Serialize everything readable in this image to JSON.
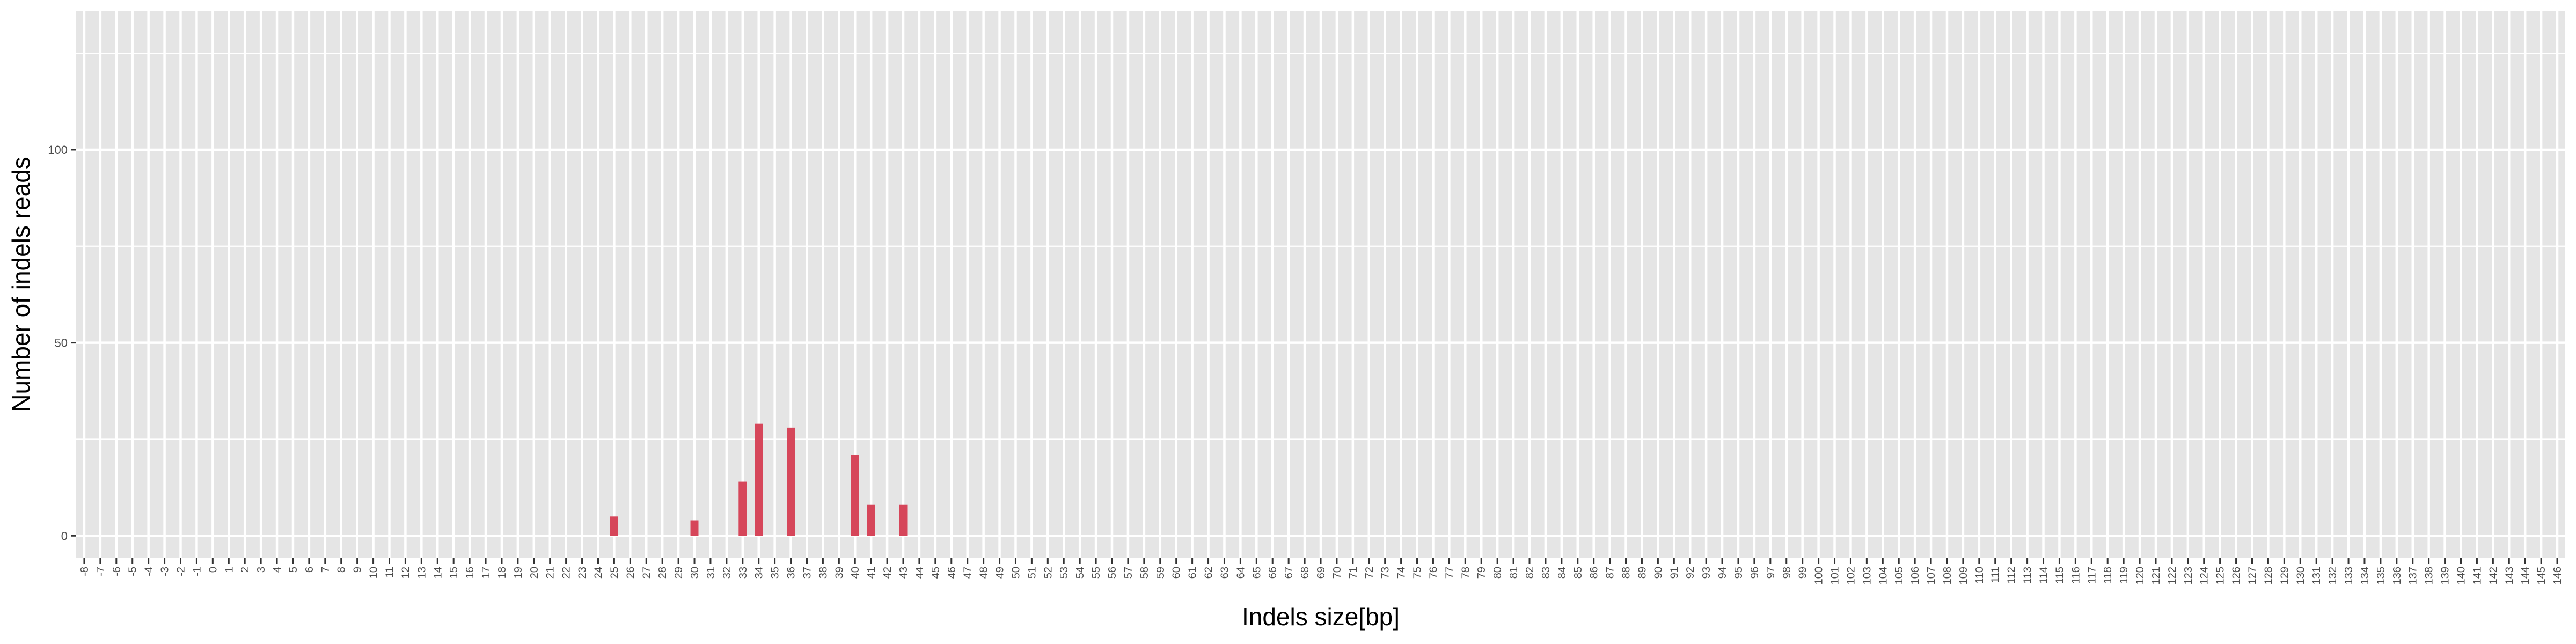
{
  "chart_data": {
    "type": "bar",
    "title": "",
    "xlabel": "Indels size[bp]",
    "ylabel": "Number of indels reads",
    "x_min": -8,
    "x_max": 146,
    "ylim": [
      -5.8,
      136
    ],
    "yticks": [
      0,
      50,
      100
    ],
    "grid": true,
    "legend": "none",
    "colors": {
      "bar": "#D6465A",
      "panel": "#E5E5E5",
      "grid": "#FFFFFF"
    },
    "series": [
      {
        "x": [
          25,
          30,
          33,
          34,
          36,
          40,
          41,
          43
        ],
        "values": [
          5,
          4,
          14,
          29,
          28,
          21,
          8,
          8
        ]
      }
    ]
  }
}
